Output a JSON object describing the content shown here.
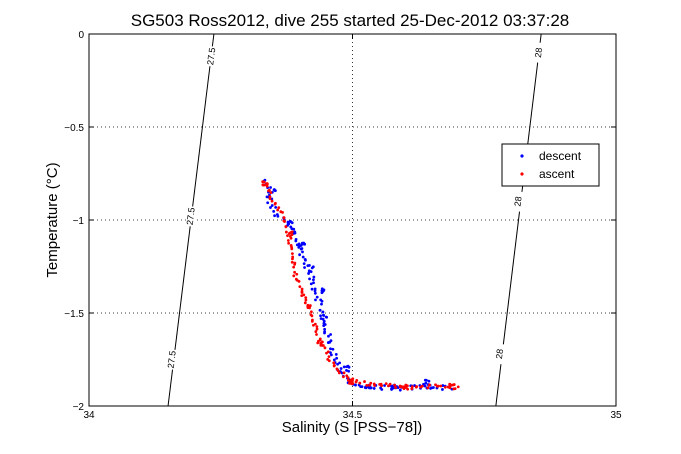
{
  "chart_data": {
    "type": "scatter",
    "title": "SG503 Ross2012, dive 255 started 25-Dec-2012 03:37:28",
    "xlabel": "Salinity (S [PSS−78])",
    "ylabel": "Temperature (°C)",
    "xlim": [
      34,
      35
    ],
    "ylim": [
      -2,
      0
    ],
    "x_ticks": [
      34,
      34.5,
      35
    ],
    "x_tick_labels": [
      "34",
      "34.5",
      "35"
    ],
    "y_ticks": [
      0,
      -0.5,
      -1,
      -1.5,
      -2
    ],
    "y_tick_labels": [
      "0",
      "−0.5",
      "−1",
      "−1.5",
      "−2"
    ],
    "grid": true,
    "legend_position": "right",
    "contours": [
      {
        "value": 27.5,
        "points": [
          [
            34.237,
            0
          ],
          [
            34.15,
            -2
          ]
        ],
        "labels": [
          {
            "text": "27.5",
            "x": 34.232,
            "y": -0.12
          },
          {
            "text": "27.5",
            "x": 34.193,
            "y": -0.98
          },
          {
            "text": "27.5",
            "x": 34.157,
            "y": -1.75
          }
        ]
      },
      {
        "value": 28,
        "points": [
          [
            34.858,
            0
          ],
          [
            34.772,
            -2
          ]
        ],
        "labels": [
          {
            "text": "28",
            "x": 34.853,
            "y": -0.1
          },
          {
            "text": "28",
            "x": 34.814,
            "y": -0.9
          },
          {
            "text": "28",
            "x": 34.779,
            "y": -1.72
          }
        ]
      }
    ],
    "series": [
      {
        "name": "descent",
        "color": "#0000ff",
        "path": [
          [
            34.33,
            -0.78
          ],
          [
            34.335,
            -0.82
          ],
          [
            34.34,
            -0.87
          ],
          [
            34.345,
            -0.92
          ],
          [
            34.355,
            -0.97
          ],
          [
            34.37,
            -1.0
          ],
          [
            34.385,
            -1.04
          ],
          [
            34.395,
            -1.1
          ],
          [
            34.4,
            -1.15
          ],
          [
            34.41,
            -1.22
          ],
          [
            34.42,
            -1.3
          ],
          [
            34.43,
            -1.38
          ],
          [
            34.44,
            -1.46
          ],
          [
            34.445,
            -1.55
          ],
          [
            34.455,
            -1.64
          ],
          [
            34.465,
            -1.72
          ],
          [
            34.475,
            -1.8
          ],
          [
            34.49,
            -1.86
          ],
          [
            34.51,
            -1.89
          ],
          [
            34.53,
            -1.9
          ],
          [
            34.56,
            -1.9
          ],
          [
            34.59,
            -1.905
          ],
          [
            34.62,
            -1.9
          ],
          [
            34.65,
            -1.895
          ],
          [
            34.67,
            -1.9
          ],
          [
            34.69,
            -1.9
          ]
        ],
        "count": 140,
        "jitter_x": 0.006,
        "jitter_y": 0.012,
        "clusters": [
          {
            "x": 34.35,
            "y": -0.84,
            "n": 6
          },
          {
            "x": 34.38,
            "y": -1.02,
            "n": 5
          },
          {
            "x": 34.405,
            "y": -1.13,
            "n": 6
          },
          {
            "x": 34.42,
            "y": -1.26,
            "n": 4
          },
          {
            "x": 34.44,
            "y": -1.38,
            "n": 6
          },
          {
            "x": 34.445,
            "y": -1.52,
            "n": 5
          },
          {
            "x": 34.49,
            "y": -1.8,
            "n": 6
          },
          {
            "x": 34.53,
            "y": -1.89,
            "n": 8
          },
          {
            "x": 34.58,
            "y": -1.9,
            "n": 10
          },
          {
            "x": 34.64,
            "y": -1.875,
            "n": 8
          }
        ]
      },
      {
        "name": "ascent",
        "color": "#ff0000",
        "path": [
          [
            34.33,
            -0.78
          ],
          [
            34.34,
            -0.83
          ],
          [
            34.345,
            -0.88
          ],
          [
            34.36,
            -0.95
          ],
          [
            34.375,
            -1.02
          ],
          [
            34.38,
            -1.1
          ],
          [
            34.385,
            -1.2
          ],
          [
            34.39,
            -1.28
          ],
          [
            34.4,
            -1.35
          ],
          [
            34.41,
            -1.42
          ],
          [
            34.42,
            -1.5
          ],
          [
            34.43,
            -1.58
          ],
          [
            34.44,
            -1.66
          ],
          [
            34.455,
            -1.74
          ],
          [
            34.47,
            -1.8
          ],
          [
            34.49,
            -1.85
          ],
          [
            34.51,
            -1.875
          ],
          [
            34.54,
            -1.885
          ],
          [
            34.57,
            -1.89
          ],
          [
            34.6,
            -1.9
          ],
          [
            34.63,
            -1.895
          ],
          [
            34.66,
            -1.89
          ],
          [
            34.7,
            -1.895
          ]
        ],
        "count": 130,
        "jitter_x": 0.004,
        "jitter_y": 0.01,
        "clusters": [
          {
            "x": 34.335,
            "y": -0.8,
            "n": 5
          },
          {
            "x": 34.38,
            "y": -1.07,
            "n": 5
          },
          {
            "x": 34.415,
            "y": -1.47,
            "n": 5
          },
          {
            "x": 34.44,
            "y": -1.66,
            "n": 5
          },
          {
            "x": 34.5,
            "y": -1.87,
            "n": 8
          },
          {
            "x": 34.6,
            "y": -1.9,
            "n": 8
          },
          {
            "x": 34.69,
            "y": -1.895,
            "n": 8
          }
        ]
      }
    ]
  }
}
